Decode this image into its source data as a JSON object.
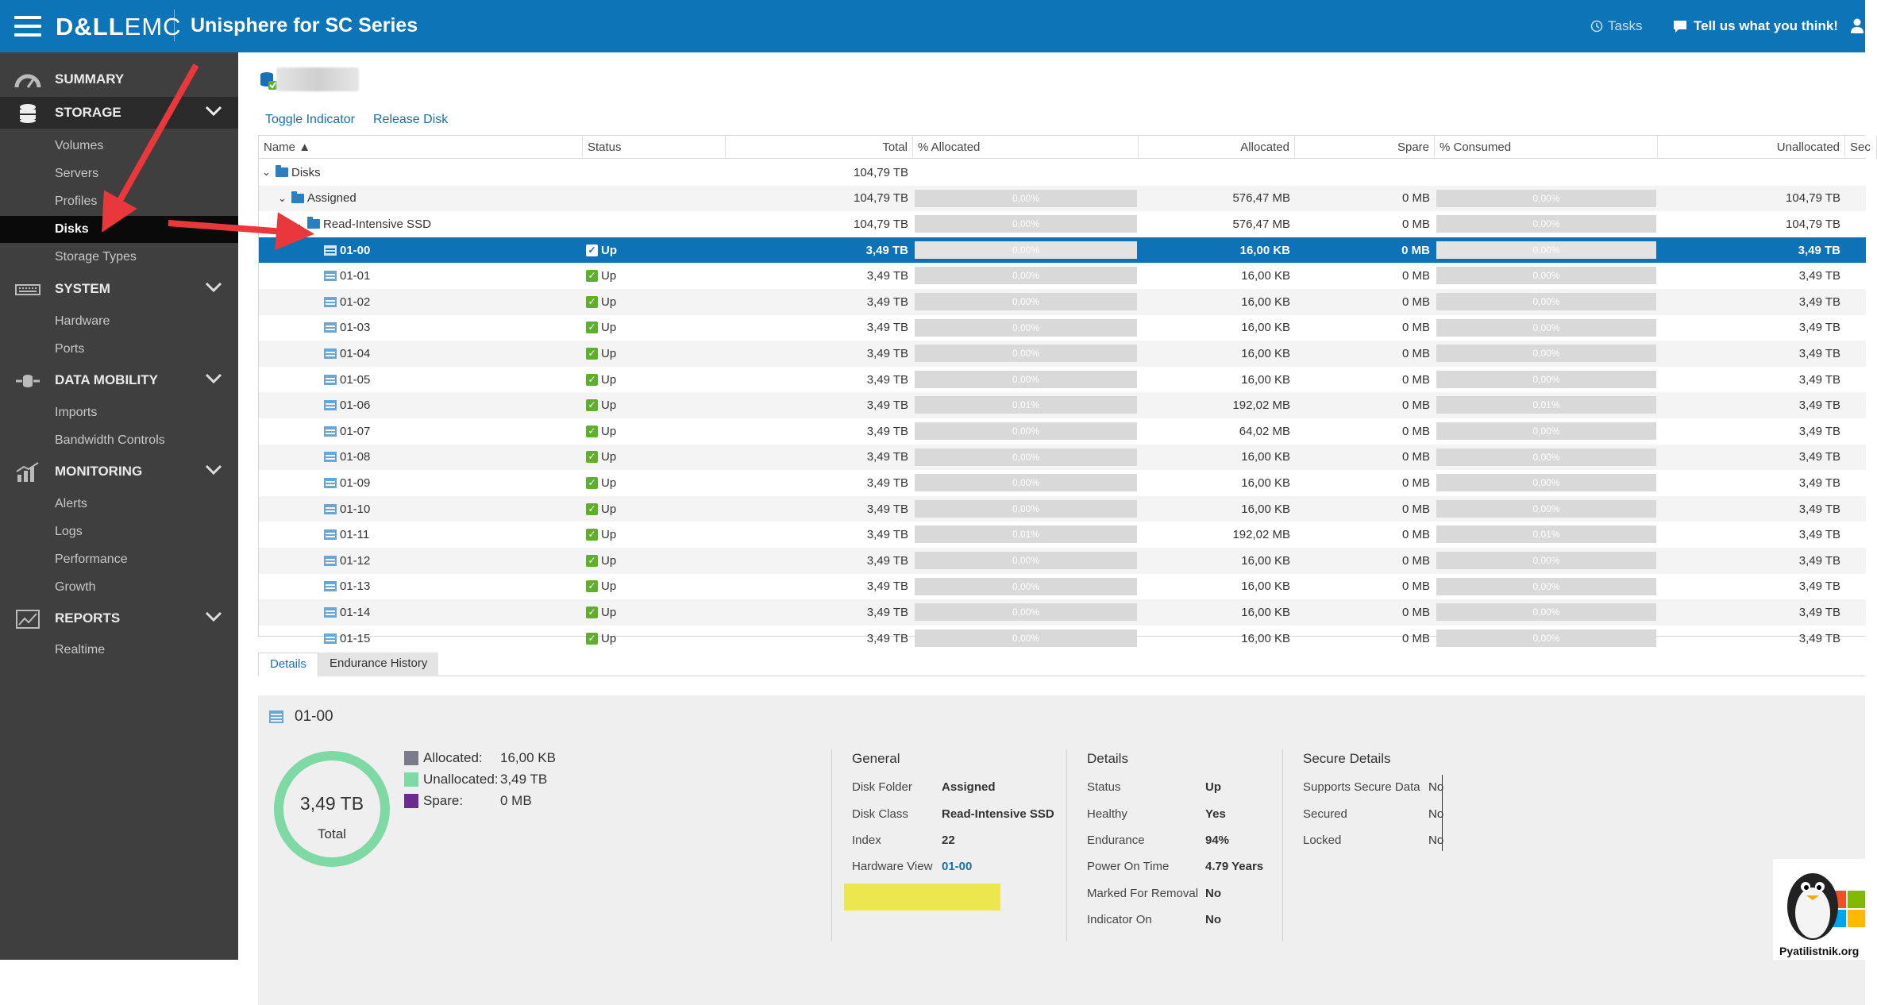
{
  "topbar": {
    "logo_bold": "D&LL",
    "logo_thin": "EMC",
    "app_title": "Unisphere for SC Series",
    "tasks_label": "Tasks",
    "feedback_label": "Tell us what you think!"
  },
  "sidebar": {
    "summary": "SUMMARY",
    "storage": "STORAGE",
    "storage_items": [
      "Volumes",
      "Servers",
      "Profiles",
      "Disks",
      "Storage Types"
    ],
    "system": "SYSTEM",
    "system_items": [
      "Hardware",
      "Ports"
    ],
    "data_mobility": "DATA MOBILITY",
    "data_mobility_items": [
      "Imports",
      "Bandwidth Controls"
    ],
    "monitoring": "MONITORING",
    "monitoring_items": [
      "Alerts",
      "Logs",
      "Performance",
      "Growth"
    ],
    "reports": "REPORTS",
    "reports_items": [
      "Realtime"
    ]
  },
  "actions": {
    "toggle_indicator": "Toggle Indicator",
    "release_disk": "Release Disk"
  },
  "table": {
    "columns": [
      "Name",
      "Status",
      "",
      "Total",
      "% Allocated",
      "Allocated",
      "Spare",
      "% Consumed",
      "Unallocated",
      "Sec"
    ],
    "tree": [
      {
        "name": "Disks",
        "total": "104,79 TB"
      },
      {
        "name": "Assigned",
        "total": "104,79 TB",
        "pct_alloc": "0,00%",
        "allocated": "576,47 MB",
        "spare": "0 MB",
        "pct_consumed": "0,00%",
        "unallocated": "104,79 TB"
      },
      {
        "name": "Read-Intensive SSD",
        "total": "104,79 TB",
        "pct_alloc": "0,00%",
        "allocated": "576,47 MB",
        "spare": "0 MB",
        "pct_consumed": "0,00%",
        "unallocated": "104,79 TB"
      }
    ],
    "disks": [
      {
        "name": "01-00",
        "status": "Up",
        "total": "3,49 TB",
        "pct_alloc": "0,00%",
        "allocated": "16,00 KB",
        "spare": "0 MB",
        "pct_consumed": "0,00%",
        "unallocated": "3,49 TB"
      },
      {
        "name": "01-01",
        "status": "Up",
        "total": "3,49 TB",
        "pct_alloc": "0,00%",
        "allocated": "16,00 KB",
        "spare": "0 MB",
        "pct_consumed": "0,00%",
        "unallocated": "3,49 TB"
      },
      {
        "name": "01-02",
        "status": "Up",
        "total": "3,49 TB",
        "pct_alloc": "0,00%",
        "allocated": "16,00 KB",
        "spare": "0 MB",
        "pct_consumed": "0,00%",
        "unallocated": "3,49 TB"
      },
      {
        "name": "01-03",
        "status": "Up",
        "total": "3,49 TB",
        "pct_alloc": "0,00%",
        "allocated": "16,00 KB",
        "spare": "0 MB",
        "pct_consumed": "0,00%",
        "unallocated": "3,49 TB"
      },
      {
        "name": "01-04",
        "status": "Up",
        "total": "3,49 TB",
        "pct_alloc": "0,00%",
        "allocated": "16,00 KB",
        "spare": "0 MB",
        "pct_consumed": "0,00%",
        "unallocated": "3,49 TB"
      },
      {
        "name": "01-05",
        "status": "Up",
        "total": "3,49 TB",
        "pct_alloc": "0,00%",
        "allocated": "16,00 KB",
        "spare": "0 MB",
        "pct_consumed": "0,00%",
        "unallocated": "3,49 TB"
      },
      {
        "name": "01-06",
        "status": "Up",
        "total": "3,49 TB",
        "pct_alloc": "0,01%",
        "allocated": "192,02 MB",
        "spare": "0 MB",
        "pct_consumed": "0,01%",
        "unallocated": "3,49 TB"
      },
      {
        "name": "01-07",
        "status": "Up",
        "total": "3,49 TB",
        "pct_alloc": "0,00%",
        "allocated": "64,02 MB",
        "spare": "0 MB",
        "pct_consumed": "0,00%",
        "unallocated": "3,49 TB"
      },
      {
        "name": "01-08",
        "status": "Up",
        "total": "3,49 TB",
        "pct_alloc": "0,00%",
        "allocated": "16,00 KB",
        "spare": "0 MB",
        "pct_consumed": "0,00%",
        "unallocated": "3,49 TB"
      },
      {
        "name": "01-09",
        "status": "Up",
        "total": "3,49 TB",
        "pct_alloc": "0,00%",
        "allocated": "16,00 KB",
        "spare": "0 MB",
        "pct_consumed": "0,00%",
        "unallocated": "3,49 TB"
      },
      {
        "name": "01-10",
        "status": "Up",
        "total": "3,49 TB",
        "pct_alloc": "0,00%",
        "allocated": "16,00 KB",
        "spare": "0 MB",
        "pct_consumed": "0,00%",
        "unallocated": "3,49 TB"
      },
      {
        "name": "01-11",
        "status": "Up",
        "total": "3,49 TB",
        "pct_alloc": "0,01%",
        "allocated": "192,02 MB",
        "spare": "0 MB",
        "pct_consumed": "0,01%",
        "unallocated": "3,49 TB"
      },
      {
        "name": "01-12",
        "status": "Up",
        "total": "3,49 TB",
        "pct_alloc": "0,00%",
        "allocated": "16,00 KB",
        "spare": "0 MB",
        "pct_consumed": "0,00%",
        "unallocated": "3,49 TB"
      },
      {
        "name": "01-13",
        "status": "Up",
        "total": "3,49 TB",
        "pct_alloc": "0,00%",
        "allocated": "16,00 KB",
        "spare": "0 MB",
        "pct_consumed": "0,00%",
        "unallocated": "3,49 TB"
      },
      {
        "name": "01-14",
        "status": "Up",
        "total": "3,49 TB",
        "pct_alloc": "0,00%",
        "allocated": "16,00 KB",
        "spare": "0 MB",
        "pct_consumed": "0,00%",
        "unallocated": "3,49 TB"
      },
      {
        "name": "01-15",
        "status": "Up",
        "total": "3,49 TB",
        "pct_alloc": "0,00%",
        "allocated": "16,00 KB",
        "spare": "0 MB",
        "pct_consumed": "0,00%",
        "unallocated": "3,49 TB"
      }
    ],
    "selected_index": 0
  },
  "tabs": [
    "Details",
    "Endurance History"
  ],
  "details": {
    "title": "01-00",
    "donut_value": "3,49 TB",
    "donut_label": "Total",
    "allocated_fraction": 0.0,
    "legend": [
      {
        "label": "Allocated:",
        "value": "16,00 KB",
        "color": "#7b7b8c"
      },
      {
        "label": "Unallocated:",
        "value": "3,49 TB",
        "color": "#7ed9a5"
      },
      {
        "label": "Spare:",
        "value": "0 MB",
        "color": "#6b2c8f"
      }
    ],
    "general": {
      "title": "General",
      "rows": [
        {
          "k": "Disk Folder",
          "v": "Assigned"
        },
        {
          "k": "Disk Class",
          "v": "Read-Intensive SSD"
        },
        {
          "k": "Index",
          "v": "22"
        },
        {
          "k": "Hardware View",
          "v": "01-00"
        }
      ]
    },
    "details_group": {
      "title": "Details",
      "rows": [
        {
          "k": "Status",
          "v": "Up"
        },
        {
          "k": "Healthy",
          "v": "Yes"
        },
        {
          "k": "Endurance",
          "v": "94%"
        },
        {
          "k": "Power On Time",
          "v": "4.79 Years"
        },
        {
          "k": "Marked For Removal",
          "v": "No"
        },
        {
          "k": "Indicator On",
          "v": "No"
        }
      ]
    },
    "secure": {
      "title": "Secure Details",
      "rows": [
        {
          "k": "Supports Secure Data",
          "v": "No"
        },
        {
          "k": "Secured",
          "v": "No"
        },
        {
          "k": "Locked",
          "v": "No"
        }
      ]
    }
  },
  "watermark": "Pyatilistnik.org",
  "colors": {
    "topbar": "#0d74b8",
    "sidebar": "#3f3f3f",
    "selected_row": "#0e72b6",
    "arrow": "#e8383b",
    "highlight": "#ece74f"
  }
}
